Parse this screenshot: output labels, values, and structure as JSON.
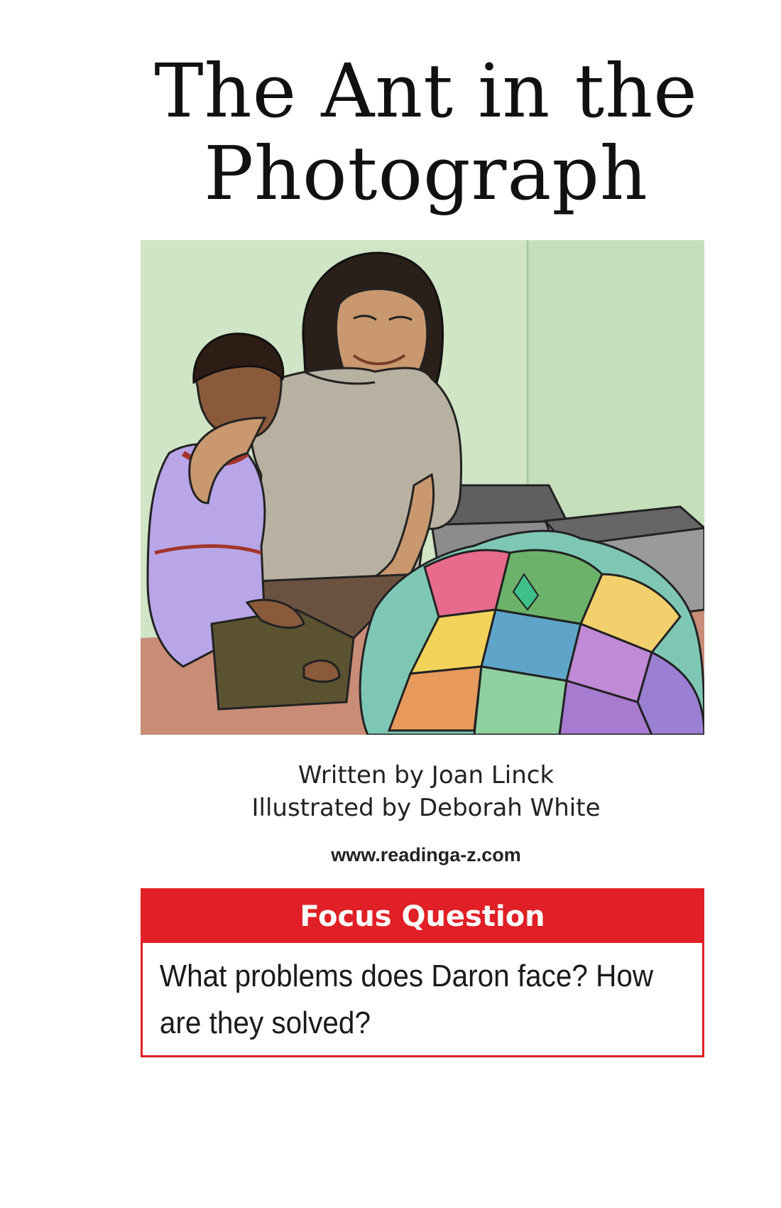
{
  "title": {
    "line1": "The Ant in the",
    "line2": "Photograph"
  },
  "credits": {
    "written_by": "Written by Joan Linck",
    "illustrated_by": "Illustrated by Deborah White"
  },
  "website": "www.readinga-z.com",
  "focus": {
    "header": "Focus Question",
    "question": "What problems does Daron face? How are they solved?"
  },
  "colors": {
    "accent_red": "#e02026",
    "wall_green": "#c9e2c0"
  }
}
